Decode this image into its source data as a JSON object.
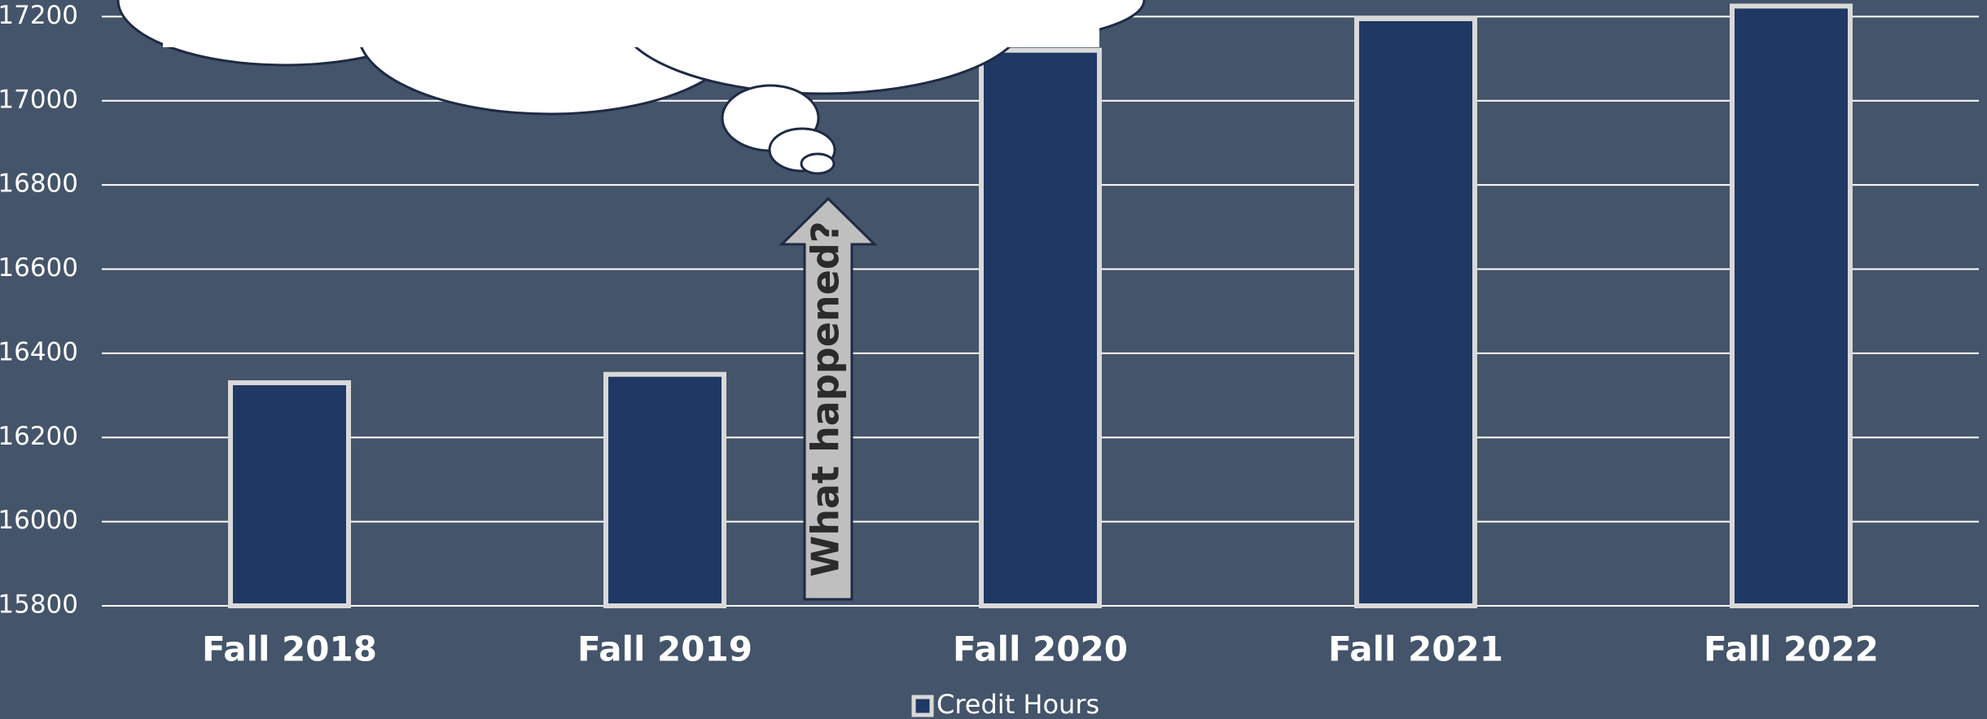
{
  "chart_data": {
    "type": "bar",
    "categories": [
      "Fall 2018",
      "Fall 2019",
      "Fall 2020",
      "Fall 2021",
      "Fall 2022"
    ],
    "series": [
      {
        "name": "Credit Hours",
        "color": "#1f3864",
        "values": [
          16330,
          16350,
          17120,
          17195,
          17225
        ]
      }
    ],
    "ylim": [
      15800,
      17400
    ],
    "yticks": [
      15800,
      16000,
      16200,
      16400,
      16600,
      16800,
      17000,
      17200
    ],
    "grid": true,
    "legend": "bottom",
    "annotation": "What happened?"
  }
}
